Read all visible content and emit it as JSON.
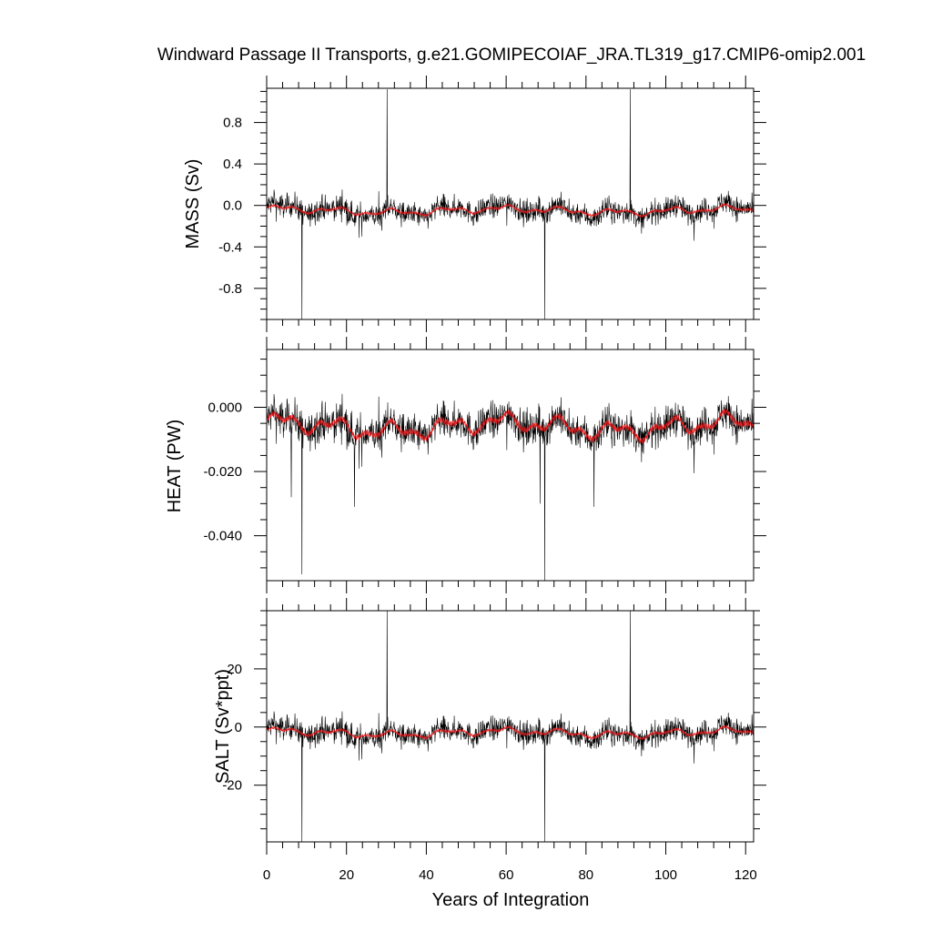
{
  "title": "Windward Passage II Transports, g.e21.GOMIPECOIAF_JRA.TL319_g17.CMIP6-omip2.001",
  "colors": {
    "raw": "#000000",
    "smooth": "#e41a1c"
  },
  "chart_data": [
    {
      "type": "line",
      "panel": "mass",
      "ylabel": "MASS (Sv)",
      "xlim": [
        0,
        122
      ],
      "ylim": [
        -1.1,
        1.13
      ],
      "y_ticks": [
        0.8,
        0.4,
        0.0,
        -0.4,
        -0.8
      ],
      "y_tick_labels": [
        "0.8",
        "0.4",
        "0.0",
        "-0.4",
        "-0.8"
      ],
      "series": [
        {
          "role": "monthly",
          "x_range": [
            0,
            122
          ],
          "mean": -0.05,
          "spread": 0.11,
          "spikes": [
            {
              "x": 8.8,
              "y": -1.1
            },
            {
              "x": 30.2,
              "y": 1.12
            },
            {
              "x": 69.7,
              "y": -1.1
            },
            {
              "x": 91.1,
              "y": 1.12
            }
          ]
        },
        {
          "role": "smoothed",
          "x_range": [
            0,
            122
          ],
          "mean": -0.05,
          "spread": 0.03
        }
      ]
    },
    {
      "type": "line",
      "panel": "heat",
      "ylabel": "HEAT (PW)",
      "xlim": [
        0,
        122
      ],
      "ylim": [
        -0.054,
        0.018
      ],
      "y_ticks": [
        0.0,
        -0.02,
        -0.04
      ],
      "y_tick_labels": [
        "0.000",
        "-0.020",
        "-0.040"
      ],
      "series": [
        {
          "role": "monthly",
          "x_range": [
            0,
            122
          ],
          "mean": -0.006,
          "spread": 0.0055,
          "spikes": [
            {
              "x": 8.8,
              "y": -0.052
            },
            {
              "x": 69.7,
              "y": -0.054
            },
            {
              "x": 6.2,
              "y": -0.028
            },
            {
              "x": 22.0,
              "y": -0.031
            },
            {
              "x": 68.5,
              "y": -0.03
            },
            {
              "x": 82.0,
              "y": -0.031
            }
          ]
        },
        {
          "role": "smoothed",
          "x_range": [
            0,
            122
          ],
          "mean": -0.006,
          "spread": 0.0025
        }
      ]
    },
    {
      "type": "line",
      "panel": "salt",
      "ylabel": "SALT (Sv*ppt)",
      "xlim": [
        0,
        122
      ],
      "ylim": [
        -39.5,
        40.0
      ],
      "y_ticks": [
        20,
        0,
        -20
      ],
      "y_tick_labels": [
        "20",
        "0",
        "-20"
      ],
      "series": [
        {
          "role": "monthly",
          "x_range": [
            0,
            122
          ],
          "mean": -2.0,
          "spread": 4.0,
          "spikes": [
            {
              "x": 8.8,
              "y": -39.5
            },
            {
              "x": 30.2,
              "y": 40.0
            },
            {
              "x": 69.7,
              "y": -39.5
            },
            {
              "x": 91.1,
              "y": 40.0
            }
          ]
        },
        {
          "role": "smoothed",
          "x_range": [
            0,
            122
          ],
          "mean": -2.0,
          "spread": 1.1
        }
      ]
    }
  ],
  "x_ticks": [
    0,
    20,
    40,
    60,
    80,
    100,
    120
  ],
  "x_tick_labels": [
    "0",
    "20",
    "40",
    "60",
    "80",
    "100",
    "120"
  ],
  "xlabel": "Years of Integration"
}
